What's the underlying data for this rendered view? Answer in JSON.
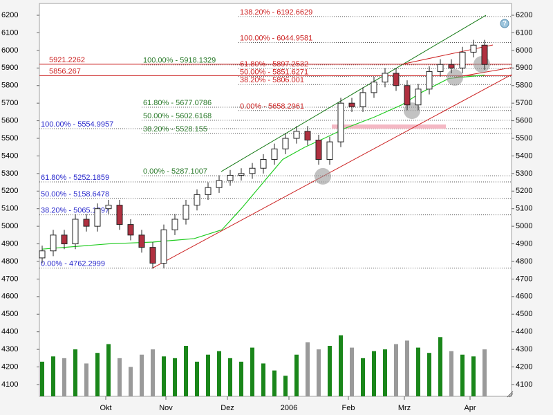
{
  "chart_data": {
    "type": "candlestick",
    "xlim": [
      0,
      170.75
    ],
    "ylim": [
      4033,
      6267
    ],
    "yticks": [
      4100,
      4200,
      4300,
      4400,
      4500,
      4600,
      4700,
      4800,
      4900,
      5000,
      5100,
      5200,
      5300,
      5400,
      5500,
      5600,
      5700,
      5800,
      5900,
      6000,
      6100,
      6200
    ],
    "xticks": [
      {
        "value": 24,
        "label": "Okt"
      },
      {
        "value": 45.75,
        "label": "Nov"
      },
      {
        "value": 68,
        "label": "Dez"
      },
      {
        "value": 90.25,
        "label": "2006"
      },
      {
        "value": 111.75,
        "label": "Feb"
      },
      {
        "value": 132,
        "label": "Mrz"
      },
      {
        "value": 155.75,
        "label": "Apr"
      }
    ],
    "grid": false,
    "up_color": "#ffffff",
    "down_color": "#b03040",
    "x": [
      1,
      5,
      9,
      13,
      17,
      21,
      25,
      29,
      33,
      37,
      41,
      45,
      49,
      53,
      57,
      61,
      65,
      69,
      73,
      77,
      81,
      85,
      89,
      93,
      97,
      101,
      105,
      109,
      113,
      117,
      121,
      125,
      129,
      133,
      137,
      141,
      145,
      149,
      153,
      157,
      161
    ],
    "open": [
      4820,
      4860,
      4950,
      4900,
      5040,
      5000,
      5100,
      5120,
      5010,
      4950,
      4880,
      4790,
      4980,
      5040,
      5120,
      5180,
      5220,
      5260,
      5290,
      5300,
      5330,
      5380,
      5440,
      5500,
      5540,
      5490,
      5380,
      5480,
      5700,
      5680,
      5760,
      5820,
      5870,
      5800,
      5690,
      5780,
      5880,
      5920,
      5900,
      5990,
      6030
    ],
    "high": [
      4890,
      4980,
      4980,
      5070,
      5070,
      5130,
      5150,
      5150,
      5040,
      4980,
      4910,
      5010,
      5070,
      5150,
      5210,
      5250,
      5290,
      5320,
      5330,
      5360,
      5410,
      5470,
      5530,
      5570,
      5570,
      5520,
      5510,
      5730,
      5730,
      5790,
      5850,
      5900,
      5900,
      5830,
      5810,
      5910,
      5950,
      5950,
      6020,
      6060,
      6060
    ],
    "low": [
      4790,
      4830,
      4870,
      4870,
      4970,
      4970,
      5070,
      4980,
      4920,
      4850,
      4760,
      4760,
      4950,
      5010,
      5090,
      5150,
      5190,
      5230,
      5260,
      5270,
      5300,
      5350,
      5410,
      5470,
      5460,
      5350,
      5350,
      5450,
      5650,
      5650,
      5730,
      5790,
      5770,
      5660,
      5660,
      5750,
      5850,
      5870,
      5870,
      5960,
      5890
    ],
    "close": [
      4860,
      4950,
      4900,
      5040,
      5000,
      5100,
      5120,
      5010,
      4950,
      4880,
      4790,
      4980,
      5040,
      5120,
      5180,
      5220,
      5260,
      5290,
      5300,
      5330,
      5380,
      5440,
      5500,
      5540,
      5490,
      5380,
      5480,
      5700,
      5680,
      5760,
      5820,
      5870,
      5800,
      5690,
      5780,
      5880,
      5920,
      5900,
      5990,
      6030,
      5920
    ],
    "volume": {
      "color_up": "#1a861a",
      "color_down": "#9a9a9a",
      "values": [
        4230,
        4260,
        4250,
        4300,
        4220,
        4280,
        4330,
        4250,
        4200,
        4270,
        4300,
        4260,
        4250,
        4320,
        4230,
        4270,
        4290,
        4250,
        4230,
        4310,
        4220,
        4180,
        4150,
        4270,
        4340,
        4300,
        4320,
        4380,
        4310,
        4250,
        4290,
        4300,
        4330,
        4350,
        4310,
        4280,
        4370,
        4290,
        4270,
        4260,
        4300
      ]
    },
    "moving_average": {
      "color": "#22cc22",
      "x": [
        1,
        25,
        41,
        56,
        66,
        73,
        81,
        88,
        96,
        103,
        111,
        121,
        131,
        138,
        148,
        161
      ],
      "values": [
        4870,
        4900,
        4910,
        4930,
        4980,
        5100,
        5250,
        5380,
        5450,
        5500,
        5560,
        5620,
        5690,
        5760,
        5840,
        5860
      ]
    },
    "levels": [
      {
        "text": "138.20% - 6192.6629",
        "value": 6192.6629,
        "x_start": 72,
        "color": "#cc2222"
      },
      {
        "text": "100.00% - 6044.9581",
        "value": 6044.9581,
        "x_start": 72,
        "color": "#cc2222"
      },
      {
        "text": "61.80% - 5897.2532",
        "value": 5897.2532,
        "x_start": 72,
        "color": "#cc2222"
      },
      {
        "text": "50.00% - 5851.6271",
        "value": 5851.6271,
        "x_start": 72,
        "color": "#cc2222"
      },
      {
        "text": "38.20% - 5806.001",
        "value": 5806.001,
        "x_start": 72,
        "color": "#cc2222"
      },
      {
        "text": "0.00% - 5658.2961",
        "value": 5658.2961,
        "x_start": 72,
        "color": "#cc2222"
      },
      {
        "text": "100.00% - 5918.1329",
        "value": 5918.1329,
        "x_start": 37,
        "color": "#2a7a2a"
      },
      {
        "text": "61.80% - 5677.0786",
        "value": 5677.0786,
        "x_start": 37,
        "color": "#2a7a2a"
      },
      {
        "text": "50.00% - 5602.6168",
        "value": 5602.6168,
        "x_start": 37,
        "color": "#2a7a2a"
      },
      {
        "text": "38.20% - 5528.155",
        "value": 5528.155,
        "x_start": 37,
        "color": "#2a7a2a"
      },
      {
        "text": "0.00% - 5287.1007",
        "value": 5287.1007,
        "x_start": 37,
        "color": "#2a7a2a"
      },
      {
        "text": "100.00% - 5554.9957",
        "value": 5554.9957,
        "x_start": 0,
        "color": "#2a2acc"
      },
      {
        "text": "61.80% - 5252.1859",
        "value": 5252.1859,
        "x_start": 0,
        "color": "#2a2acc"
      },
      {
        "text": "50.00% - 5158.6478",
        "value": 5158.6478,
        "x_start": 0,
        "color": "#2a2acc"
      },
      {
        "text": "38.20% - 5065.1097",
        "value": 5065.1097,
        "x_start": 0,
        "color": "#2a2acc"
      },
      {
        "text": "0.00% - 4762.2999",
        "value": 4762.2999,
        "x_start": 0,
        "color": "#2a2acc"
      }
    ],
    "resistance": [
      {
        "text": "5921.2262",
        "value": 5921.2262,
        "color": "#cc2222"
      },
      {
        "text": "5856.267",
        "value": 5856.267,
        "color": "#cc2222"
      }
    ],
    "trendlines": [
      {
        "x": [
          65.75,
          161.5
        ],
        "values": [
          5311,
          6200
        ],
        "color": "#117711"
      },
      {
        "x": [
          40.75,
          170.75
        ],
        "values": [
          4761,
          5862
        ],
        "color": "#cc2222"
      },
      {
        "x": [
          131,
          164
        ],
        "values": [
          5921,
          6031
        ],
        "color": "#cc2222"
      },
      {
        "x": [
          150,
          170.75
        ],
        "values": [
          5846,
          5902
        ],
        "color": "#cc2222"
      }
    ],
    "markers": {
      "x": [
        102.5,
        134.75,
        150.25,
        160
      ],
      "values": [
        5284,
        5657,
        5846,
        5921
      ]
    },
    "band": {
      "x": [
        105.75,
        147
      ],
      "value": 5567,
      "color": "#f4b8c4"
    },
    "help": "?"
  }
}
